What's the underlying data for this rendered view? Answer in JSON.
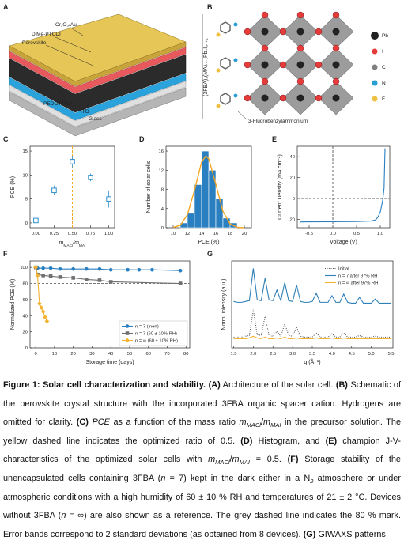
{
  "diagrams": {
    "A": {
      "label": "A",
      "layers": [
        "Cr₂O₃/Au",
        "DiMe-PTCDI",
        "Perovskite",
        "PEDOT:PSS",
        "ITO",
        "Glass"
      ]
    },
    "B": {
      "label": "B",
      "formula": "(3FBA)₂(MA)ₙ₋₁PbₙI₃ₙ₊₁",
      "legend": [
        "Pb",
        "I",
        "C",
        "N",
        "F"
      ],
      "molecule": "3-Fluorobenzylammonium"
    }
  },
  "chart_data": [
    {
      "type": "scatter",
      "title": "C",
      "xlabel": [
        {
          "text": "m",
          "style": "italic"
        },
        {
          "text": "MACl",
          "style": "sub"
        },
        {
          "text": "/",
          "style": "italic"
        },
        {
          "text": "m",
          "style": "italic"
        },
        {
          "text": "MAI",
          "style": "sub"
        }
      ],
      "ylabel": "PCE (%)",
      "x": [
        0,
        0.25,
        0.5,
        0.75,
        1
      ],
      "series": [
        {
          "color": "#2f8fcf",
          "values": [
            0.5,
            6.8,
            12.8,
            9.5,
            5.0
          ],
          "errors": [
            0.5,
            1.0,
            1.2,
            0.8,
            1.8
          ]
        }
      ],
      "xlim": [
        -0.08,
        1.08
      ],
      "ylim": [
        -1,
        16
      ],
      "xticks": [
        {
          "value": 0,
          "label": "0.00"
        },
        {
          "value": 0.25,
          "label": "0.25"
        },
        {
          "value": 0.5,
          "label": "0.50"
        },
        {
          "value": 0.75,
          "label": "0.75"
        },
        {
          "value": 1,
          "label": "1.00"
        }
      ],
      "yticks": [
        0,
        5,
        10,
        15
      ],
      "vlines": [
        {
          "value": 0.5,
          "color": "#f5a623"
        }
      ]
    },
    {
      "type": "histogram",
      "title": "D",
      "xlabel": "PCE (%)",
      "ylabel": "Number of solar cells",
      "color": "#2a7fc0",
      "bins": [
        11,
        12,
        13,
        14,
        15,
        16,
        17,
        18,
        19
      ],
      "counts": [
        1,
        3,
        9,
        16,
        12,
        6,
        2,
        1
      ],
      "fit": {
        "color": "#f5a623",
        "x": [
          10,
          11,
          12,
          13,
          14,
          14.6,
          15,
          16,
          17,
          18,
          19,
          20
        ],
        "values": [
          0.07,
          0.5,
          2.7,
          7.8,
          13.7,
          15,
          14.4,
          9.1,
          3.4,
          0.8,
          0.1,
          0
        ]
      },
      "xlim": [
        9,
        21
      ],
      "ylim": [
        0,
        17
      ],
      "xticks": [
        10,
        12,
        14,
        16,
        18,
        20
      ],
      "yticks": [
        0,
        4,
        8,
        12,
        16
      ]
    },
    {
      "type": "line",
      "title": "E",
      "xlabel": "Voltage (V)",
      "ylabel": "Current Density (mA cm⁻²)",
      "x": [
        -0.7,
        -0.5,
        0,
        0.5,
        0.8,
        0.9,
        0.95,
        1.0,
        1.05,
        1.08,
        1.1
      ],
      "series": [
        {
          "color": "#2a7fc0",
          "values": [
            -22.5,
            -22.4,
            -22.3,
            -22.1,
            -21.6,
            -20.5,
            -18,
            -13,
            -2,
            10,
            48
          ]
        }
      ],
      "xlim": [
        -0.75,
        1.2
      ],
      "ylim": [
        -28,
        50
      ],
      "xticks": [
        -0.5,
        {
          "value": 0,
          "label": "0.0"
        },
        0.5,
        {
          "value": 1,
          "label": "1.0"
        }
      ],
      "yticks": [
        -20,
        0,
        20,
        40
      ],
      "vlines": [
        {
          "value": 0,
          "color": "#666666"
        }
      ],
      "hlines": [
        {
          "value": 0,
          "color": "#666666"
        }
      ]
    },
    {
      "type": "line",
      "title": "F",
      "xlabel": "Storage time (days)",
      "ylabel": "Normalized PCE (%)",
      "legend": "lower right",
      "series": [
        {
          "name": "n = 7 (inert)",
          "color": "#2a7fc0",
          "marker": "circle",
          "x": [
            0,
            1,
            4,
            8,
            13,
            20,
            27,
            34,
            40,
            49,
            55,
            62,
            77
          ],
          "values": [
            100,
            99,
            99,
            99,
            98,
            98,
            98,
            98,
            97,
            97,
            97,
            97,
            96
          ]
        },
        {
          "name": "n = 7 (60 ± 10% RH)",
          "color": "#707070",
          "marker": "square",
          "x": [
            0,
            1,
            4,
            8,
            13,
            20,
            27,
            34,
            40,
            77
          ],
          "values": [
            100,
            91,
            90,
            89,
            88,
            87,
            85,
            84,
            82,
            80
          ]
        },
        {
          "name": "n = ∞ (60 ± 10% RH)",
          "color": "#f5b335",
          "marker": "diamond",
          "x": [
            0,
            1,
            2,
            3,
            4,
            5,
            6
          ],
          "values": [
            100,
            90,
            55,
            50,
            45,
            38,
            33
          ]
        }
      ],
      "xlim": [
        -3,
        82
      ],
      "ylim": [
        0,
        108
      ],
      "xticks": [
        0,
        10,
        20,
        30,
        40,
        50,
        60,
        70,
        80
      ],
      "yticks": [
        0,
        20,
        40,
        60,
        80,
        100
      ],
      "hlines": [
        {
          "value": 80,
          "color": "#777777"
        }
      ]
    },
    {
      "type": "line",
      "title": "G",
      "xlabel": "q (Å⁻¹)",
      "ylabel": "Norm. intensity (a.u.)",
      "legend": "upper right",
      "x": [
        1.5,
        1.6,
        1.7,
        1.8,
        1.9,
        2.0,
        2.1,
        2.2,
        2.3,
        2.4,
        2.5,
        2.6,
        2.7,
        2.8,
        2.9,
        3.0,
        3.1,
        3.2,
        3.3,
        3.4,
        3.5,
        3.6,
        3.7,
        3.8,
        3.9,
        4.0,
        4.1,
        4.2,
        4.3,
        4.4,
        4.5,
        4.6,
        4.7,
        4.8,
        4.9,
        5.0,
        5.1,
        5.2,
        5.3,
        5.4,
        5.5
      ],
      "series": [
        {
          "name": "Initial",
          "color": "#555555",
          "dash": "dotted",
          "values": [
            1.3,
            1.3,
            1.3,
            1.4,
            1.5,
            4.6,
            1.6,
            1.5,
            3.8,
            1.5,
            1.4,
            2.0,
            1.4,
            2.9,
            1.5,
            1.4,
            2.5,
            1.4,
            1.3,
            1.3,
            1.3,
            1.8,
            1.3,
            1.3,
            1.3,
            1.7,
            1.3,
            1.3,
            1.8,
            1.3,
            1.3,
            1.3,
            1.5,
            1.3,
            1.3,
            1.3,
            1.4,
            1.3,
            1.3,
            1.3,
            1.3
          ]
        },
        {
          "name": "n = 7 after 97% RH",
          "color": "#2f7fb8",
          "values": [
            5.6,
            5.5,
            5.5,
            5.6,
            5.7,
            9.6,
            5.8,
            5.7,
            8.4,
            5.8,
            5.7,
            7.0,
            5.7,
            7.9,
            5.7,
            5.6,
            7.6,
            5.6,
            5.5,
            5.5,
            5.6,
            6.6,
            5.5,
            5.5,
            5.5,
            6.3,
            5.5,
            5.5,
            6.5,
            5.5,
            5.4,
            5.4,
            6.1,
            5.4,
            5.4,
            5.4,
            5.9,
            5.4,
            5.4,
            5.4,
            5.4
          ]
        },
        {
          "name": "n = ∞ after 97% RH",
          "color": "#f2b233",
          "values": [
            1.1,
            1.1,
            1.1,
            1.1,
            1.2,
            1.4,
            1.2,
            1.1,
            1.3,
            1.1,
            1.1,
            1.2,
            1.1,
            1.3,
            1.1,
            1.1,
            1.2,
            1.1,
            1.1,
            1.1,
            1.1,
            1.2,
            1.1,
            1.1,
            1.1,
            1.2,
            1.1,
            1.1,
            1.2,
            1.1,
            1.1,
            1.1,
            1.1,
            1.1,
            1.1,
            1.1,
            1.1,
            1.1,
            1.1,
            1.1,
            1.1
          ]
        }
      ],
      "xlim": [
        1.45,
        5.55
      ],
      "ylim": [
        0,
        10.5
      ],
      "xticks": [
        1.5,
        {
          "value": 2,
          "label": "2.0"
        },
        2.5,
        {
          "value": 3,
          "label": "3.0"
        },
        3.5,
        {
          "value": 4,
          "label": "4.0"
        },
        4.5,
        {
          "value": 5,
          "label": "5.0"
        },
        5.5
      ]
    }
  ],
  "caption": [
    {
      "text": "Figure 1: Solar cell characterization and stability. ",
      "style": "bold"
    },
    {
      "text": "(A)",
      "style": "bold"
    },
    {
      "text": " Architecture of the solar cell. ",
      "style": "normal"
    },
    {
      "text": "(B)",
      "style": "bold"
    },
    {
      "text": " Schematic of the perovskite crystal structure with the incorporated 3FBA organic spacer cation. Hydrogens are omitted for clarity. ",
      "style": "normal"
    },
    {
      "text": "(C)",
      "style": "bold"
    },
    {
      "text": " PCE",
      "style": "italic"
    },
    {
      "text": " as a function of the mass ratio ",
      "style": "normal"
    },
    {
      "text": "m",
      "style": "italic"
    },
    {
      "text": "MACl",
      "style": "sub"
    },
    {
      "text": "/",
      "style": "normal"
    },
    {
      "text": "m",
      "style": "italic"
    },
    {
      "text": "MAI",
      "style": "sub"
    },
    {
      "text": " in the precursor solution. The yellow dashed line indicates the optimized ratio of 0.5. ",
      "style": "normal"
    },
    {
      "text": "(D)",
      "style": "bold"
    },
    {
      "text": " Histogram, and ",
      "style": "normal"
    },
    {
      "text": "(E)",
      "style": "bold"
    },
    {
      "text": " champion J-V-characteristics of the optimized solar cells with ",
      "style": "normal"
    },
    {
      "text": "m",
      "style": "italic"
    },
    {
      "text": "MACl",
      "style": "sub"
    },
    {
      "text": "/",
      "style": "normal"
    },
    {
      "text": "m",
      "style": "italic"
    },
    {
      "text": "MAI",
      "style": "sub"
    },
    {
      "text": " = 0.5. ",
      "style": "normal"
    },
    {
      "text": "(F)",
      "style": "bold"
    },
    {
      "text": " Storage stability of the unencapsulated cells containing 3FBA (",
      "style": "normal"
    },
    {
      "text": "n",
      "style": "italic"
    },
    {
      "text": " = 7) kept in the dark either in a N",
      "style": "normal"
    },
    {
      "text": "2",
      "style": "sub"
    },
    {
      "text": " atmosphere or under atmospheric conditions with a high humidity of 60 ± 10 % RH and temperatures of 21 ± 2 °C. Devices without 3FBA (",
      "style": "normal"
    },
    {
      "text": "n",
      "style": "italic"
    },
    {
      "text": " = ∞) are also shown as a reference. The grey dashed line indicates the 80 % mark. Error bands correspond to 2 standard deviations (as obtained from 8 devices). ",
      "style": "normal"
    },
    {
      "text": "(G)",
      "style": "bold"
    },
    {
      "text": " GIWAXS patterns",
      "style": "normal"
    }
  ]
}
